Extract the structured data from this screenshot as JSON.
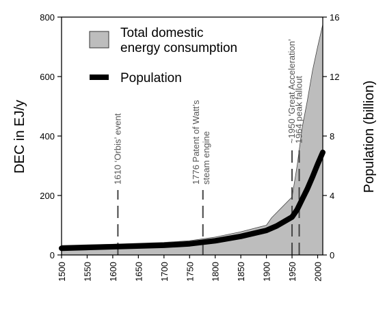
{
  "chart_data": {
    "type": "area",
    "x_ticks": [
      1500,
      1550,
      1600,
      1650,
      1700,
      1750,
      1800,
      1850,
      1900,
      1950,
      2000
    ],
    "xlim": [
      1500,
      2010
    ],
    "ylabel_left": "DEC in EJ/y",
    "ylim_left": [
      0,
      800
    ],
    "yticks_left": [
      0,
      200,
      400,
      600,
      800
    ],
    "ylabel_right": "Population (billion)",
    "ylim_right": [
      0,
      16
    ],
    "yticks_right": [
      0,
      4,
      8,
      12,
      16
    ],
    "legend_position": "top-left",
    "series": [
      {
        "name": "Total domestic energy consumption",
        "axis": "left",
        "kind": "area",
        "color": "#bdbdbd",
        "x": [
          1500,
          1600,
          1700,
          1750,
          1800,
          1850,
          1900,
          1910,
          1950,
          1960,
          1970,
          1980,
          1990,
          2000,
          2010
        ],
        "y": [
          32,
          36,
          42,
          48,
          60,
          78,
          100,
          125,
          195,
          300,
          430,
          520,
          620,
          700,
          775
        ]
      },
      {
        "name": "Population",
        "axis": "right",
        "kind": "line",
        "color": "#000000",
        "x": [
          1500,
          1600,
          1700,
          1750,
          1800,
          1850,
          1900,
          1920,
          1950,
          1960,
          1970,
          1980,
          1990,
          2000,
          2010
        ],
        "y": [
          0.45,
          0.55,
          0.65,
          0.75,
          0.95,
          1.25,
          1.65,
          1.95,
          2.55,
          3.05,
          3.75,
          4.45,
          5.25,
          6.1,
          6.9
        ]
      }
    ],
    "annotations": [
      {
        "x": 1610,
        "label": "1610 'Orbis' event",
        "lines": [
          "1610 ‘Orbis’ event"
        ]
      },
      {
        "x": 1776,
        "label": "1776 Patent of Watt's steam engine",
        "lines": [
          "1776 Patent of Watt’s",
          "steam engine"
        ]
      },
      {
        "x": 1950,
        "label": "~1950 'Great Acceleration'",
        "lines": [
          "~1950 ‘Great Acceleration’"
        ]
      },
      {
        "x": 1964,
        "label": "1964 peak fallout",
        "lines": [
          "1964 peak fallout"
        ]
      }
    ]
  }
}
